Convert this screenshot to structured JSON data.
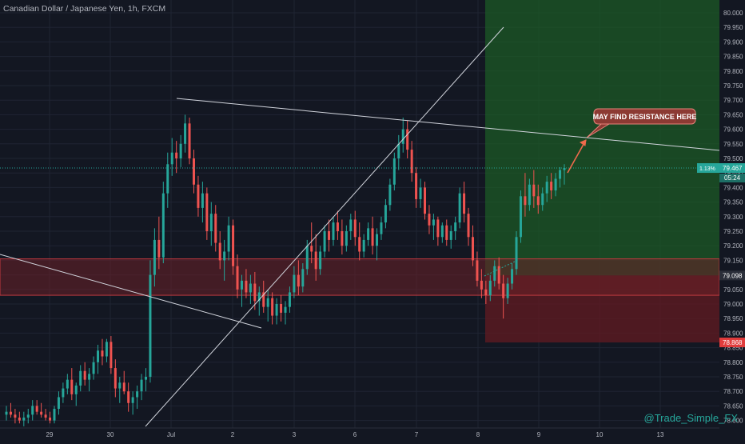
{
  "header": {
    "title": "Canadian Dollar / Japanese Yen, 1h, FXCM"
  },
  "annotation": {
    "text": "MAY FIND RESISTANCE HERE"
  },
  "watermark": "@Trade_Simple_FX",
  "colors": {
    "background": "#131722",
    "bull": "#26a69a",
    "bear": "#ef5350",
    "grid": "#1f2433",
    "axis_text": "#b2b5be",
    "profit_zone": "#1c5a26",
    "loss_zone": "#5e1a22",
    "support_zone": "#6b2028",
    "line": "#d1d4dc",
    "annotation_bg": "#8c3a33",
    "watermark": "#26a69a"
  },
  "price_axis": {
    "labels": [
      "80.000",
      "79.950",
      "79.900",
      "79.850",
      "79.800",
      "79.750",
      "79.700",
      "79.650",
      "79.600",
      "79.550",
      "79.500",
      "79.450",
      "79.400",
      "79.350",
      "79.300",
      "79.250",
      "79.200",
      "79.150",
      "79.100",
      "79.050",
      "79.000",
      "78.950",
      "78.900",
      "78.850",
      "78.800",
      "78.750",
      "78.700",
      "78.650",
      "78.600"
    ],
    "current_price_label": "79.467",
    "current_price_prefix": "1.13%",
    "countdown_label": "05:24",
    "target_stop_label_top": "79.098",
    "stop_label": "78.868"
  },
  "time_axis": {
    "labels": [
      "29",
      "30",
      "Jul",
      "2",
      "3",
      "6",
      "7",
      "8",
      "9",
      "10",
      "13"
    ]
  },
  "chart_data": {
    "type": "candlestick",
    "title": "Canadian Dollar / Japanese Yen, 1h, FXCM",
    "x_labels": [
      "29",
      "30",
      "Jul",
      "2",
      "3",
      "6",
      "7",
      "8",
      "9",
      "10",
      "13"
    ],
    "ylim": [
      78.58,
      80.03
    ],
    "current_price": 79.467,
    "zones": {
      "support": [
        79.03,
        79.155
      ],
      "long_entry": 79.098,
      "long_target": 80.03,
      "long_stop": 78.868
    },
    "candles": [
      {
        "o": 78.62,
        "h": 78.65,
        "l": 78.6,
        "c": 78.63
      },
      {
        "o": 78.63,
        "h": 78.66,
        "l": 78.61,
        "c": 78.62
      },
      {
        "o": 78.62,
        "h": 78.64,
        "l": 78.59,
        "c": 78.61
      },
      {
        "o": 78.61,
        "h": 78.63,
        "l": 78.59,
        "c": 78.6
      },
      {
        "o": 78.6,
        "h": 78.63,
        "l": 78.58,
        "c": 78.61
      },
      {
        "o": 78.61,
        "h": 78.64,
        "l": 78.59,
        "c": 78.62
      },
      {
        "o": 78.62,
        "h": 78.67,
        "l": 78.6,
        "c": 78.65
      },
      {
        "o": 78.65,
        "h": 78.67,
        "l": 78.62,
        "c": 78.63
      },
      {
        "o": 78.63,
        "h": 78.66,
        "l": 78.61,
        "c": 78.62
      },
      {
        "o": 78.62,
        "h": 78.64,
        "l": 78.6,
        "c": 78.61
      },
      {
        "o": 78.61,
        "h": 78.63,
        "l": 78.59,
        "c": 78.6
      },
      {
        "o": 78.6,
        "h": 78.65,
        "l": 78.59,
        "c": 78.64
      },
      {
        "o": 78.64,
        "h": 78.7,
        "l": 78.62,
        "c": 78.68
      },
      {
        "o": 78.68,
        "h": 78.73,
        "l": 78.66,
        "c": 78.71
      },
      {
        "o": 78.71,
        "h": 78.76,
        "l": 78.69,
        "c": 78.74
      },
      {
        "o": 78.74,
        "h": 78.78,
        "l": 78.67,
        "c": 78.69
      },
      {
        "o": 78.69,
        "h": 78.73,
        "l": 78.65,
        "c": 78.72
      },
      {
        "o": 78.72,
        "h": 78.79,
        "l": 78.7,
        "c": 78.77
      },
      {
        "o": 78.77,
        "h": 78.8,
        "l": 78.72,
        "c": 78.74
      },
      {
        "o": 78.74,
        "h": 78.78,
        "l": 78.7,
        "c": 78.76
      },
      {
        "o": 78.76,
        "h": 78.82,
        "l": 78.74,
        "c": 78.8
      },
      {
        "o": 78.8,
        "h": 78.86,
        "l": 78.76,
        "c": 78.84
      },
      {
        "o": 78.84,
        "h": 78.88,
        "l": 78.79,
        "c": 78.82
      },
      {
        "o": 78.82,
        "h": 78.88,
        "l": 78.8,
        "c": 78.87
      },
      {
        "o": 78.87,
        "h": 78.89,
        "l": 78.76,
        "c": 78.78
      },
      {
        "o": 78.78,
        "h": 78.81,
        "l": 78.68,
        "c": 78.71
      },
      {
        "o": 78.71,
        "h": 78.75,
        "l": 78.66,
        "c": 78.73
      },
      {
        "o": 78.73,
        "h": 78.77,
        "l": 78.69,
        "c": 78.7
      },
      {
        "o": 78.7,
        "h": 78.73,
        "l": 78.63,
        "c": 78.66
      },
      {
        "o": 78.66,
        "h": 78.7,
        "l": 78.62,
        "c": 78.68
      },
      {
        "o": 78.68,
        "h": 78.72,
        "l": 78.64,
        "c": 78.7
      },
      {
        "o": 78.7,
        "h": 78.76,
        "l": 78.67,
        "c": 78.74
      },
      {
        "o": 78.74,
        "h": 78.78,
        "l": 78.7,
        "c": 78.75
      },
      {
        "o": 78.75,
        "h": 79.15,
        "l": 78.73,
        "c": 79.1
      },
      {
        "o": 79.1,
        "h": 79.26,
        "l": 79.06,
        "c": 79.22
      },
      {
        "o": 79.22,
        "h": 79.3,
        "l": 79.12,
        "c": 79.16
      },
      {
        "o": 79.16,
        "h": 79.42,
        "l": 79.14,
        "c": 79.38
      },
      {
        "o": 79.38,
        "h": 79.52,
        "l": 79.33,
        "c": 79.48
      },
      {
        "o": 79.48,
        "h": 79.57,
        "l": 79.44,
        "c": 79.52
      },
      {
        "o": 79.52,
        "h": 79.56,
        "l": 79.45,
        "c": 79.5
      },
      {
        "o": 79.5,
        "h": 79.58,
        "l": 79.47,
        "c": 79.55
      },
      {
        "o": 79.55,
        "h": 79.65,
        "l": 79.52,
        "c": 79.62
      },
      {
        "o": 79.62,
        "h": 79.64,
        "l": 79.48,
        "c": 79.5
      },
      {
        "o": 79.5,
        "h": 79.53,
        "l": 79.38,
        "c": 79.41
      },
      {
        "o": 79.41,
        "h": 79.44,
        "l": 79.3,
        "c": 79.33
      },
      {
        "o": 79.33,
        "h": 79.42,
        "l": 79.28,
        "c": 79.38
      },
      {
        "o": 79.38,
        "h": 79.4,
        "l": 79.22,
        "c": 79.25
      },
      {
        "o": 79.25,
        "h": 79.35,
        "l": 79.2,
        "c": 79.31
      },
      {
        "o": 79.31,
        "h": 79.34,
        "l": 79.18,
        "c": 79.21
      },
      {
        "o": 79.21,
        "h": 79.25,
        "l": 79.12,
        "c": 79.15
      },
      {
        "o": 79.15,
        "h": 79.22,
        "l": 79.08,
        "c": 79.18
      },
      {
        "o": 79.18,
        "h": 79.3,
        "l": 79.15,
        "c": 79.27
      },
      {
        "o": 79.27,
        "h": 79.29,
        "l": 79.1,
        "c": 79.13
      },
      {
        "o": 79.13,
        "h": 79.17,
        "l": 79.02,
        "c": 79.05
      },
      {
        "o": 79.05,
        "h": 79.1,
        "l": 78.99,
        "c": 79.08
      },
      {
        "o": 79.08,
        "h": 79.12,
        "l": 79.02,
        "c": 79.04
      },
      {
        "o": 79.04,
        "h": 79.1,
        "l": 79.0,
        "c": 79.07
      },
      {
        "o": 79.07,
        "h": 79.11,
        "l": 78.98,
        "c": 79.01
      },
      {
        "o": 79.01,
        "h": 79.06,
        "l": 78.96,
        "c": 79.04
      },
      {
        "o": 79.04,
        "h": 79.08,
        "l": 78.97,
        "c": 78.99
      },
      {
        "o": 78.99,
        "h": 79.05,
        "l": 78.94,
        "c": 79.02
      },
      {
        "o": 79.02,
        "h": 79.04,
        "l": 78.93,
        "c": 78.96
      },
      {
        "o": 78.96,
        "h": 79.02,
        "l": 78.93,
        "c": 79.0
      },
      {
        "o": 79.0,
        "h": 79.03,
        "l": 78.94,
        "c": 78.97
      },
      {
        "o": 78.97,
        "h": 79.01,
        "l": 78.93,
        "c": 78.99
      },
      {
        "o": 78.99,
        "h": 79.06,
        "l": 78.97,
        "c": 79.04
      },
      {
        "o": 79.04,
        "h": 79.13,
        "l": 79.02,
        "c": 79.1
      },
      {
        "o": 79.1,
        "h": 79.15,
        "l": 79.03,
        "c": 79.06
      },
      {
        "o": 79.06,
        "h": 79.14,
        "l": 79.04,
        "c": 79.12
      },
      {
        "o": 79.12,
        "h": 79.22,
        "l": 79.1,
        "c": 79.2
      },
      {
        "o": 79.2,
        "h": 79.28,
        "l": 79.14,
        "c": 79.18
      },
      {
        "o": 79.18,
        "h": 79.24,
        "l": 79.08,
        "c": 79.12
      },
      {
        "o": 79.12,
        "h": 79.2,
        "l": 79.1,
        "c": 79.18
      },
      {
        "o": 79.18,
        "h": 79.27,
        "l": 79.16,
        "c": 79.25
      },
      {
        "o": 79.25,
        "h": 79.29,
        "l": 79.18,
        "c": 79.22
      },
      {
        "o": 79.22,
        "h": 79.3,
        "l": 79.2,
        "c": 79.28
      },
      {
        "o": 79.28,
        "h": 79.32,
        "l": 79.22,
        "c": 79.25
      },
      {
        "o": 79.25,
        "h": 79.29,
        "l": 79.17,
        "c": 79.2
      },
      {
        "o": 79.2,
        "h": 79.27,
        "l": 79.18,
        "c": 79.25
      },
      {
        "o": 79.25,
        "h": 79.31,
        "l": 79.22,
        "c": 79.29
      },
      {
        "o": 79.29,
        "h": 79.32,
        "l": 79.2,
        "c": 79.23
      },
      {
        "o": 79.23,
        "h": 79.28,
        "l": 79.15,
        "c": 79.18
      },
      {
        "o": 79.18,
        "h": 79.24,
        "l": 79.16,
        "c": 79.22
      },
      {
        "o": 79.22,
        "h": 79.28,
        "l": 79.2,
        "c": 79.26
      },
      {
        "o": 79.26,
        "h": 79.3,
        "l": 79.17,
        "c": 79.2
      },
      {
        "o": 79.2,
        "h": 79.26,
        "l": 79.15,
        "c": 79.24
      },
      {
        "o": 79.24,
        "h": 79.3,
        "l": 79.22,
        "c": 79.28
      },
      {
        "o": 79.28,
        "h": 79.36,
        "l": 79.26,
        "c": 79.34
      },
      {
        "o": 79.34,
        "h": 79.43,
        "l": 79.32,
        "c": 79.41
      },
      {
        "o": 79.41,
        "h": 79.52,
        "l": 79.39,
        "c": 79.5
      },
      {
        "o": 79.5,
        "h": 79.58,
        "l": 79.46,
        "c": 79.55
      },
      {
        "o": 79.55,
        "h": 79.64,
        "l": 79.52,
        "c": 79.6
      },
      {
        "o": 79.6,
        "h": 79.63,
        "l": 79.5,
        "c": 79.53
      },
      {
        "o": 79.53,
        "h": 79.56,
        "l": 79.42,
        "c": 79.45
      },
      {
        "o": 79.45,
        "h": 79.47,
        "l": 79.33,
        "c": 79.36
      },
      {
        "o": 79.36,
        "h": 79.43,
        "l": 79.33,
        "c": 79.4
      },
      {
        "o": 79.4,
        "h": 79.42,
        "l": 79.29,
        "c": 79.31
      },
      {
        "o": 79.31,
        "h": 79.34,
        "l": 79.24,
        "c": 79.27
      },
      {
        "o": 79.27,
        "h": 79.31,
        "l": 79.22,
        "c": 79.29
      },
      {
        "o": 79.29,
        "h": 79.3,
        "l": 79.2,
        "c": 79.23
      },
      {
        "o": 79.23,
        "h": 79.28,
        "l": 79.21,
        "c": 79.27
      },
      {
        "o": 79.27,
        "h": 79.29,
        "l": 79.2,
        "c": 79.22
      },
      {
        "o": 79.22,
        "h": 79.27,
        "l": 79.19,
        "c": 79.25
      },
      {
        "o": 79.25,
        "h": 79.3,
        "l": 79.22,
        "c": 79.28
      },
      {
        "o": 79.28,
        "h": 79.4,
        "l": 79.26,
        "c": 79.38
      },
      {
        "o": 79.38,
        "h": 79.42,
        "l": 79.28,
        "c": 79.31
      },
      {
        "o": 79.31,
        "h": 79.33,
        "l": 79.2,
        "c": 79.23
      },
      {
        "o": 79.23,
        "h": 79.27,
        "l": 79.13,
        "c": 79.15
      },
      {
        "o": 79.15,
        "h": 79.18,
        "l": 79.06,
        "c": 79.08
      },
      {
        "o": 79.08,
        "h": 79.12,
        "l": 79.02,
        "c": 79.05
      },
      {
        "o": 79.05,
        "h": 79.08,
        "l": 79.0,
        "c": 79.03
      },
      {
        "o": 79.03,
        "h": 79.1,
        "l": 79.01,
        "c": 79.08
      },
      {
        "o": 79.08,
        "h": 79.15,
        "l": 79.06,
        "c": 79.13
      },
      {
        "o": 79.13,
        "h": 79.16,
        "l": 79.05,
        "c": 79.07
      },
      {
        "o": 79.07,
        "h": 79.1,
        "l": 78.95,
        "c": 79.02
      },
      {
        "o": 79.02,
        "h": 79.09,
        "l": 79.0,
        "c": 79.07
      },
      {
        "o": 79.07,
        "h": 79.14,
        "l": 79.05,
        "c": 79.12
      },
      {
        "o": 79.12,
        "h": 79.25,
        "l": 79.1,
        "c": 79.23
      },
      {
        "o": 79.23,
        "h": 79.39,
        "l": 79.21,
        "c": 79.37
      },
      {
        "o": 79.37,
        "h": 79.45,
        "l": 79.3,
        "c": 79.34
      },
      {
        "o": 79.34,
        "h": 79.43,
        "l": 79.32,
        "c": 79.41
      },
      {
        "o": 79.41,
        "h": 79.46,
        "l": 79.33,
        "c": 79.37
      },
      {
        "o": 79.37,
        "h": 79.41,
        "l": 79.31,
        "c": 79.34
      },
      {
        "o": 79.34,
        "h": 79.4,
        "l": 79.32,
        "c": 79.38
      },
      {
        "o": 79.38,
        "h": 79.44,
        "l": 79.35,
        "c": 79.42
      },
      {
        "o": 79.42,
        "h": 79.45,
        "l": 79.36,
        "c": 79.39
      },
      {
        "o": 79.39,
        "h": 79.45,
        "l": 79.37,
        "c": 79.43
      },
      {
        "o": 79.43,
        "h": 79.47,
        "l": 79.4,
        "c": 79.46
      },
      {
        "o": 79.46,
        "h": 79.48,
        "l": 79.41,
        "c": 79.467
      }
    ]
  }
}
